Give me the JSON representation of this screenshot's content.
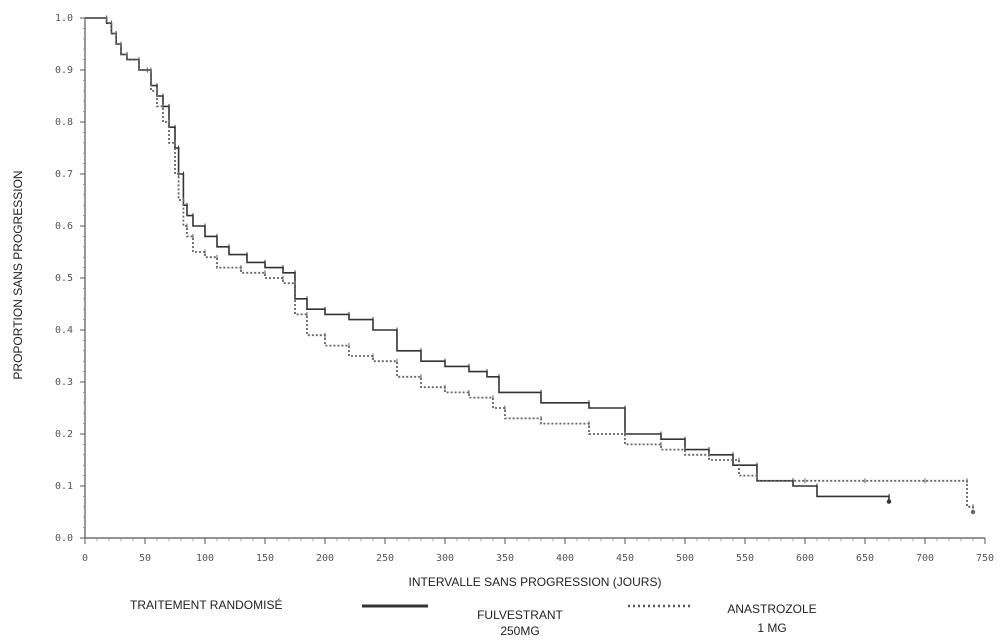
{
  "chart_data": {
    "type": "line",
    "subtype": "kaplan-meier step curve",
    "xlabel": "INTERVALLE SANS PROGRESSION (JOURS)",
    "ylabel": "PROPORTION SANS PROGRESSION",
    "xlim": [
      0,
      750
    ],
    "ylim": [
      0.0,
      1.0
    ],
    "x_ticks": [
      "0",
      "50",
      "100",
      "150",
      "200",
      "250",
      "300",
      "350",
      "400",
      "450",
      "500",
      "550",
      "600",
      "650",
      "700",
      "750"
    ],
    "y_ticks": [
      "0.0",
      "0.1",
      "0.2",
      "0.3",
      "0.4",
      "0.5",
      "0.6",
      "0.7",
      "0.8",
      "0.9",
      "1.0"
    ],
    "grid": false,
    "legend": {
      "title": "TRAITEMENT RANDOMISÉ",
      "position": "bottom",
      "entries": [
        {
          "name_line1": "FULVESTRANT",
          "name_line2": "250MG",
          "style": "solid"
        },
        {
          "name_line1": "ANASTROZOLE",
          "name_line2": "1 MG",
          "style": "dotted"
        }
      ]
    },
    "series": [
      {
        "name": "FULVESTRANT 250MG",
        "style": "solid",
        "x": [
          0,
          18,
          22,
          26,
          30,
          35,
          45,
          52,
          55,
          60,
          65,
          70,
          75,
          78,
          82,
          85,
          90,
          100,
          110,
          120,
          135,
          150,
          165,
          175,
          185,
          200,
          220,
          240,
          260,
          280,
          300,
          320,
          335,
          345,
          380,
          420,
          450,
          480,
          500,
          520,
          540,
          560,
          590,
          610,
          670
        ],
        "y": [
          1.0,
          0.99,
          0.97,
          0.95,
          0.93,
          0.92,
          0.9,
          0.9,
          0.87,
          0.85,
          0.83,
          0.79,
          0.75,
          0.7,
          0.64,
          0.62,
          0.6,
          0.58,
          0.56,
          0.545,
          0.53,
          0.52,
          0.51,
          0.46,
          0.44,
          0.43,
          0.42,
          0.4,
          0.36,
          0.34,
          0.33,
          0.32,
          0.31,
          0.28,
          0.26,
          0.25,
          0.2,
          0.19,
          0.17,
          0.16,
          0.14,
          0.11,
          0.1,
          0.08,
          0.07
        ]
      },
      {
        "name": "ANASTROZOLE 1 MG",
        "style": "dotted",
        "x": [
          0,
          18,
          22,
          26,
          30,
          35,
          45,
          52,
          55,
          60,
          65,
          70,
          75,
          78,
          82,
          85,
          90,
          100,
          110,
          130,
          150,
          165,
          175,
          185,
          200,
          220,
          240,
          260,
          280,
          300,
          320,
          340,
          350,
          380,
          420,
          450,
          480,
          500,
          520,
          545,
          560,
          600,
          650,
          700,
          735,
          740
        ],
        "y": [
          1.0,
          0.99,
          0.97,
          0.95,
          0.93,
          0.92,
          0.9,
          0.9,
          0.86,
          0.83,
          0.8,
          0.76,
          0.7,
          0.65,
          0.6,
          0.58,
          0.55,
          0.54,
          0.52,
          0.51,
          0.5,
          0.49,
          0.43,
          0.39,
          0.37,
          0.35,
          0.34,
          0.31,
          0.29,
          0.28,
          0.27,
          0.25,
          0.23,
          0.22,
          0.2,
          0.18,
          0.17,
          0.16,
          0.15,
          0.12,
          0.11,
          0.11,
          0.11,
          0.11,
          0.06,
          0.05
        ]
      }
    ]
  }
}
